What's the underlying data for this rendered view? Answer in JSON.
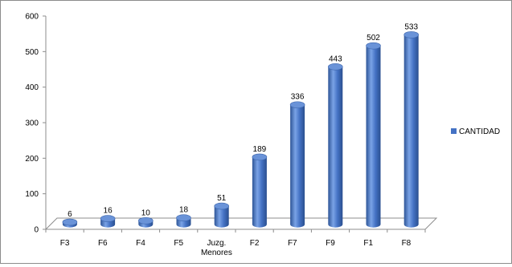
{
  "chart_data": {
    "type": "bar",
    "categories": [
      "F3",
      "F6",
      "F4",
      "F5",
      "Juzg. Menores",
      "F2",
      "F7",
      "F9",
      "F1",
      "F8"
    ],
    "series": [
      {
        "name": "CANTIDAD",
        "values": [
          6,
          16,
          10,
          18,
          51,
          189,
          336,
          443,
          502,
          533
        ]
      }
    ],
    "data_labels": [
      "6",
      "16",
      "10",
      "18",
      "51",
      "189",
      "336",
      "443",
      "502",
      "533"
    ],
    "yticks": [
      "0",
      "100",
      "200",
      "300",
      "400",
      "500",
      "600"
    ],
    "ylim": [
      0,
      600
    ],
    "grid": false,
    "legend_position": "right",
    "bar_style": "3d-cylinder",
    "colors": {
      "bar": "#4472c4",
      "bar_dark": "#2e5597",
      "bar_light": "#7aa3e6",
      "top": "#6a93d8"
    }
  }
}
